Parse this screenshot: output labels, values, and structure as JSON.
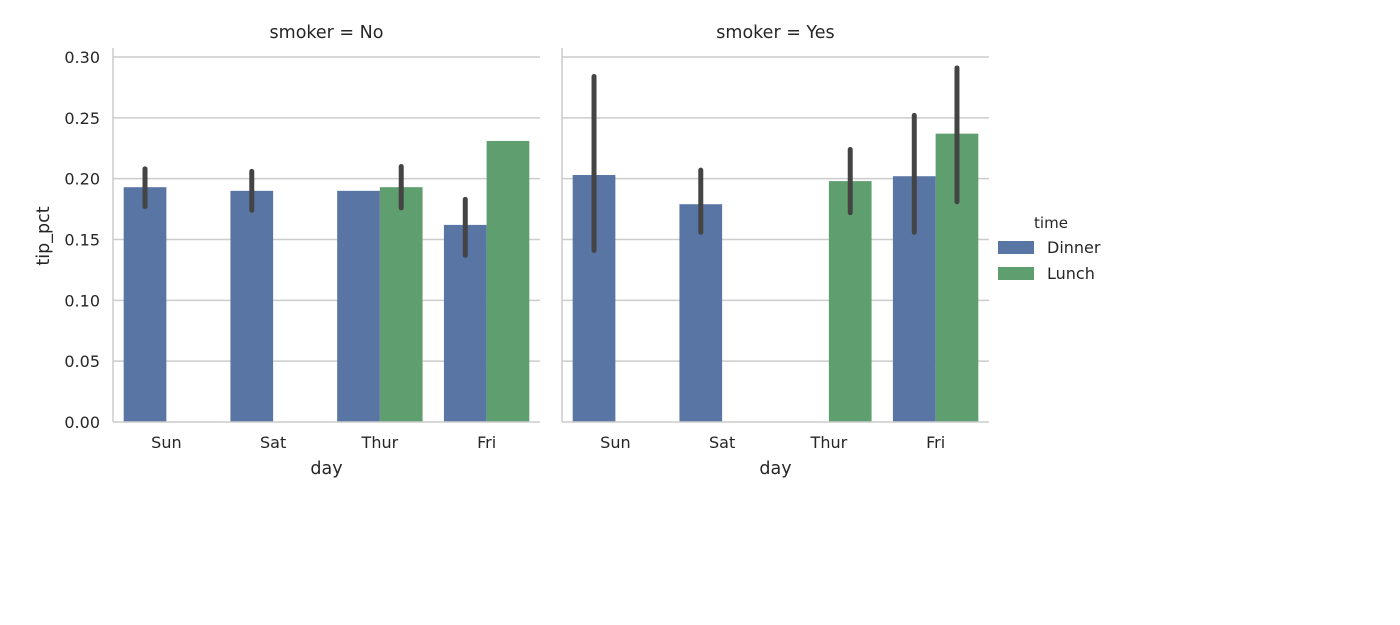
{
  "chart_data": {
    "type": "bar",
    "categories": [
      "Sun",
      "Sat",
      "Thur",
      "Fri"
    ],
    "xlabel": "day",
    "ylabel": "tip_pct",
    "ylim": [
      0,
      0.3
    ],
    "yticks": [
      0.0,
      0.05,
      0.1,
      0.15,
      0.2,
      0.25,
      0.3
    ],
    "ytick_labels": [
      "0.00",
      "0.05",
      "0.10",
      "0.15",
      "0.20",
      "0.25",
      "0.30"
    ],
    "grid": "horizontal",
    "legend": {
      "title": "time",
      "placement": "right",
      "entries": [
        {
          "name": "Dinner",
          "color": "#5875a4"
        },
        {
          "name": "Lunch",
          "color": "#5f9e6e"
        }
      ]
    },
    "panels": [
      {
        "title": "smoker = No",
        "series": [
          {
            "name": "Dinner",
            "values": [
              0.193,
              0.19,
              0.19,
              0.162
            ],
            "ci": [
              [
                0.177,
                0.208
              ],
              [
                0.174,
                0.206
              ],
              null,
              [
                0.137,
                0.183
              ]
            ]
          },
          {
            "name": "Lunch",
            "values": [
              null,
              null,
              0.193,
              0.231
            ],
            "ci": [
              null,
              null,
              [
                0.176,
                0.21
              ],
              null
            ]
          }
        ]
      },
      {
        "title": "smoker = Yes",
        "series": [
          {
            "name": "Dinner",
            "values": [
              0.203,
              0.179,
              null,
              0.202
            ],
            "ci": [
              [
                0.141,
                0.284
              ],
              [
                0.156,
                0.207
              ],
              null,
              [
                0.156,
                0.252
              ]
            ]
          },
          {
            "name": "Lunch",
            "values": [
              null,
              null,
              0.198,
              0.237
            ],
            "ci": [
              null,
              null,
              [
                0.172,
                0.224
              ],
              [
                0.181,
                0.291
              ]
            ]
          }
        ]
      }
    ]
  }
}
